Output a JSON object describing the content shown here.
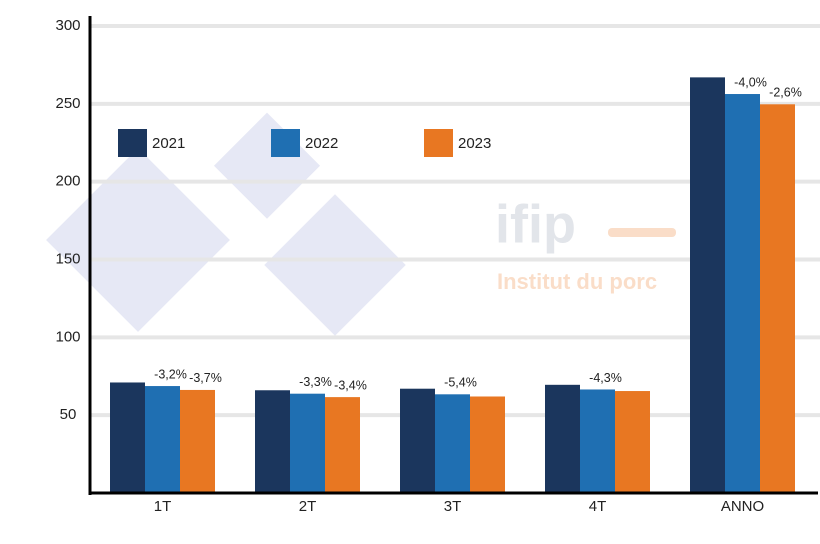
{
  "chart_data": {
    "type": "bar",
    "categories": [
      "1T",
      "2T",
      "3T",
      "4T",
      "ANNO"
    ],
    "series": [
      {
        "name": "2021",
        "color": "#1b365d",
        "values": [
          71,
          66,
          67,
          69.5,
          267
        ]
      },
      {
        "name": "2022",
        "color": "#1f6fb2",
        "values": [
          68.7,
          63.8,
          63.4,
          66.5,
          256.3
        ]
      },
      {
        "name": "2023",
        "color": "#e87722",
        "values": [
          66.2,
          61.6,
          62,
          65.5,
          249.7
        ]
      }
    ],
    "annotations": [
      {
        "category": 0,
        "series": 1,
        "text": "-3,2%"
      },
      {
        "category": 0,
        "series": 2,
        "text": "-3,7%"
      },
      {
        "category": 1,
        "series": 1,
        "text": "-3,3%"
      },
      {
        "category": 1,
        "series": 2,
        "text": "-3,4%"
      },
      {
        "category": 2,
        "series": 1,
        "text": "-5,4%"
      },
      {
        "category": 3,
        "series": 1,
        "text": "-4,3%"
      },
      {
        "category": 4,
        "series": 1,
        "text": "-4,0%"
      },
      {
        "category": 4,
        "series": 2,
        "text": "-2,6%"
      }
    ],
    "watermark": {
      "brand": "ifip",
      "tagline": "Institut du porc"
    },
    "ylim": [
      0,
      300
    ],
    "yticks": [
      50,
      100,
      150,
      200,
      250,
      300
    ],
    "grid": true,
    "legend": "top-left"
  }
}
